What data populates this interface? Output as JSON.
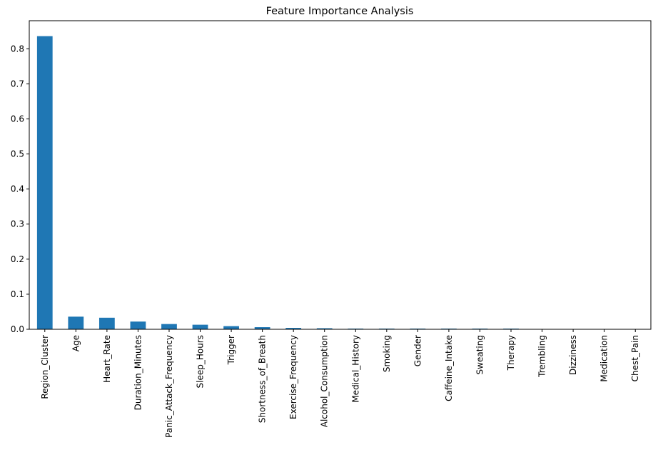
{
  "chart_data": {
    "type": "bar",
    "title": "Feature Importance Analysis",
    "xlabel": "",
    "ylabel": "",
    "categories": [
      "Region_Cluster",
      "Age",
      "Heart_Rate",
      "Duration_Minutes",
      "Panic_Attack_Frequency",
      "Sleep_Hours",
      "Trigger",
      "Shortness_of_Breath",
      "Exercise_Frequency",
      "Alcohol_Consumption",
      "Medical_History",
      "Smoking",
      "Gender",
      "Caffeine_Intake",
      "Sweating",
      "Therapy",
      "Trembling",
      "Dizziness",
      "Medication",
      "Chest_Pain"
    ],
    "values": [
      0.836,
      0.036,
      0.033,
      0.022,
      0.015,
      0.013,
      0.009,
      0.006,
      0.004,
      0.003,
      0.002,
      0.002,
      0.002,
      0.002,
      0.002,
      0.002,
      0.0,
      0.0,
      0.0,
      0.0
    ],
    "ylim": [
      0,
      0.88
    ],
    "yticks": [
      0.0,
      0.1,
      0.2,
      0.3,
      0.4,
      0.5,
      0.6,
      0.7,
      0.8
    ],
    "ytick_labels": [
      "0.0",
      "0.1",
      "0.2",
      "0.3",
      "0.4",
      "0.5",
      "0.6",
      "0.7",
      "0.8"
    ],
    "bar_color": "#1f77b4",
    "grid": false,
    "legend": "none"
  }
}
